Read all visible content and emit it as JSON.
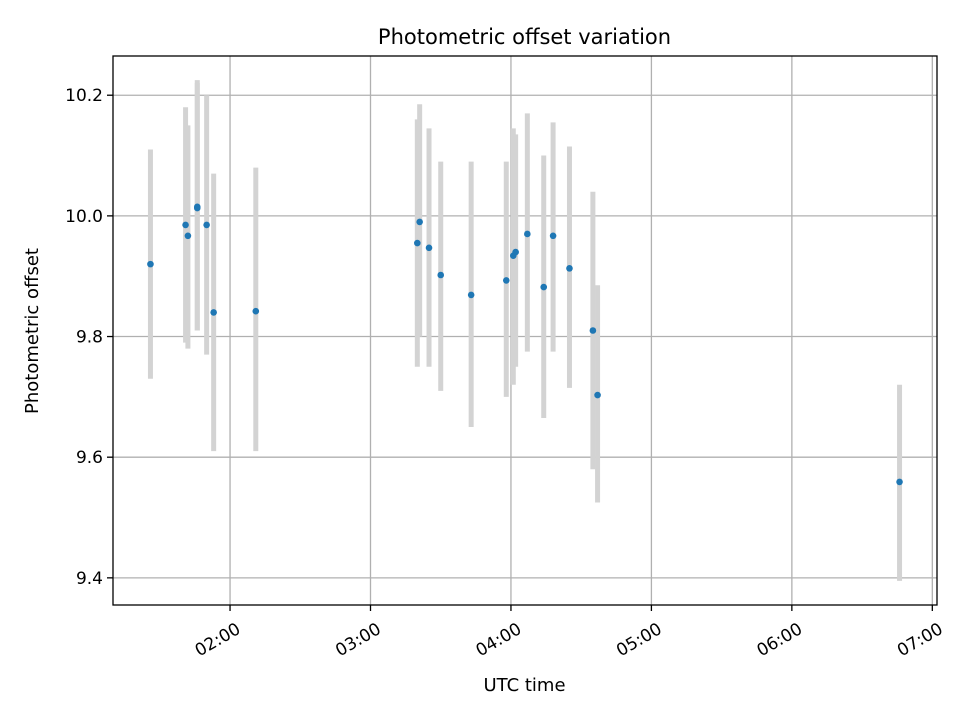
{
  "chart_data": {
    "type": "scatter",
    "title": "Photometric offset variation",
    "xlabel": "UTC time",
    "ylabel": "Photometric offset",
    "x_is_time": true,
    "xlim": [
      "01:10",
      "07:02"
    ],
    "ylim": [
      9.355,
      10.265
    ],
    "x_ticks": [
      "02:00",
      "03:00",
      "04:00",
      "05:00",
      "06:00",
      "07:00"
    ],
    "y_ticks": [
      9.4,
      9.6,
      9.8,
      10.0,
      10.2
    ],
    "y_tick_labels": [
      "9.4",
      "9.6",
      "9.8",
      "10.0",
      "10.2"
    ],
    "grid": true,
    "colors": {
      "point": "#1f77b4",
      "errorbar": "#d3d3d3",
      "grid": "#b0b0b0"
    },
    "points": [
      {
        "x": "01:26",
        "y": 9.92,
        "ylow": 9.73,
        "yhigh": 10.11
      },
      {
        "x": "01:41",
        "y": 9.985,
        "ylow": 9.79,
        "yhigh": 10.18
      },
      {
        "x": "01:42",
        "y": 9.967,
        "ylow": 9.78,
        "yhigh": 10.15
      },
      {
        "x": "01:46",
        "y": 10.013,
        "ylow": 9.81,
        "yhigh": 10.225
      },
      {
        "x": "01:46",
        "y": 10.015,
        "ylow": 9.81,
        "yhigh": 10.22
      },
      {
        "x": "01:50",
        "y": 9.985,
        "ylow": 9.77,
        "yhigh": 10.2
      },
      {
        "x": "01:53",
        "y": 9.84,
        "ylow": 9.61,
        "yhigh": 10.07
      },
      {
        "x": "02:11",
        "y": 9.842,
        "ylow": 9.61,
        "yhigh": 10.08
      },
      {
        "x": "03:20",
        "y": 9.955,
        "ylow": 9.75,
        "yhigh": 10.16
      },
      {
        "x": "03:21",
        "y": 9.99,
        "ylow": 9.8,
        "yhigh": 10.185
      },
      {
        "x": "03:25",
        "y": 9.947,
        "ylow": 9.75,
        "yhigh": 10.145
      },
      {
        "x": "03:30",
        "y": 9.902,
        "ylow": 9.71,
        "yhigh": 10.09
      },
      {
        "x": "03:43",
        "y": 9.869,
        "ylow": 9.65,
        "yhigh": 10.09
      },
      {
        "x": "03:58",
        "y": 9.893,
        "ylow": 9.7,
        "yhigh": 10.09
      },
      {
        "x": "04:01",
        "y": 9.934,
        "ylow": 9.72,
        "yhigh": 10.145
      },
      {
        "x": "04:02",
        "y": 9.94,
        "ylow": 9.75,
        "yhigh": 10.135
      },
      {
        "x": "04:07",
        "y": 9.97,
        "ylow": 9.775,
        "yhigh": 10.17
      },
      {
        "x": "04:14",
        "y": 9.882,
        "ylow": 9.665,
        "yhigh": 10.1
      },
      {
        "x": "04:18",
        "y": 9.967,
        "ylow": 9.775,
        "yhigh": 10.155
      },
      {
        "x": "04:25",
        "y": 9.913,
        "ylow": 9.715,
        "yhigh": 10.115
      },
      {
        "x": "04:35",
        "y": 9.81,
        "ylow": 9.58,
        "yhigh": 10.04
      },
      {
        "x": "04:37",
        "y": 9.703,
        "ylow": 9.525,
        "yhigh": 9.885
      },
      {
        "x": "06:46",
        "y": 9.559,
        "ylow": 9.395,
        "yhigh": 9.72
      }
    ]
  }
}
